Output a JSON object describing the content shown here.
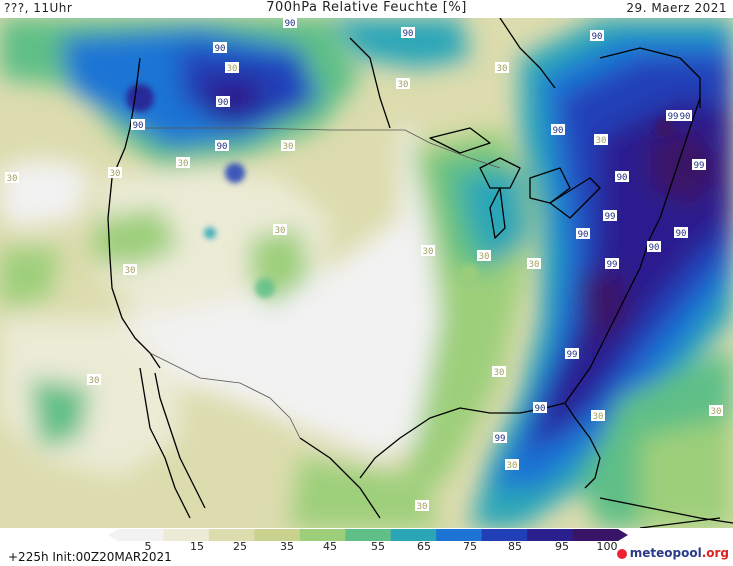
{
  "header": {
    "left": "???, 11Uhr",
    "title": "700hPa Relative Feuchte [%]",
    "date": "29. Maerz 2021"
  },
  "colorbar": {
    "labels": [
      "5",
      "15",
      "25",
      "35",
      "45",
      "55",
      "65",
      "75",
      "85",
      "95",
      "100"
    ],
    "colors": [
      "#f2f2f2",
      "#ebebd6",
      "#dcdcae",
      "#c9d18f",
      "#9dcf7a",
      "#5fbf86",
      "#2aa6b8",
      "#1d74d4",
      "#2140b8",
      "#2a1f8f",
      "#3a1466"
    ]
  },
  "map_labels": {
    "values": [
      "90",
      "30",
      "99"
    ]
  },
  "footer": {
    "run": "+225h  Init:00Z20MAR2021",
    "logo_name": "meteopool",
    "logo_tld": ".org"
  }
}
